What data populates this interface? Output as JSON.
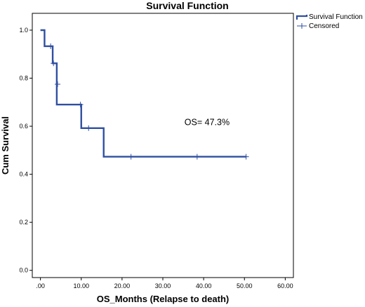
{
  "chart_data": {
    "type": "line",
    "title": "Survival Function",
    "xlabel": "OS_Months (Relapse to death)",
    "ylabel": "Cum Survival",
    "xlim": [
      -2,
      62
    ],
    "ylim": [
      -0.03,
      1.07
    ],
    "x_ticks": [
      ".00",
      "10.00",
      "20.00",
      "30.00",
      "40.00",
      "50.00",
      "60.00"
    ],
    "x_tick_values": [
      0,
      10,
      20,
      30,
      40,
      50,
      60
    ],
    "y_ticks": [
      "0.0",
      "0.2",
      "0.4",
      "0.6",
      "0.8",
      "1.0"
    ],
    "y_tick_values": [
      0,
      0.2,
      0.4,
      0.6,
      0.8,
      1.0
    ],
    "grid": false,
    "legend": {
      "position": "top-right",
      "entries": [
        "Survival Function",
        "Censored"
      ]
    },
    "series": [
      {
        "name": "Survival Function",
        "type": "step",
        "color": "#2f4fa0",
        "x": [
          0,
          1,
          3,
          4,
          10,
          15.5,
          50.5
        ],
        "y": [
          1.0,
          0.933,
          0.862,
          0.69,
          0.592,
          0.473,
          0.473
        ]
      },
      {
        "name": "Censored",
        "type": "scatter",
        "marker": "plus",
        "color": "#2f4fa0",
        "x": [
          2.5,
          3.2,
          4.2,
          9.8,
          11.8,
          22.2,
          38.4,
          50.4
        ],
        "y": [
          0.933,
          0.862,
          0.775,
          0.69,
          0.592,
          0.473,
          0.473,
          0.473
        ]
      }
    ],
    "annotations": [
      {
        "text": "OS= 47.3%",
        "x": 35.3,
        "y": 0.605
      }
    ]
  }
}
